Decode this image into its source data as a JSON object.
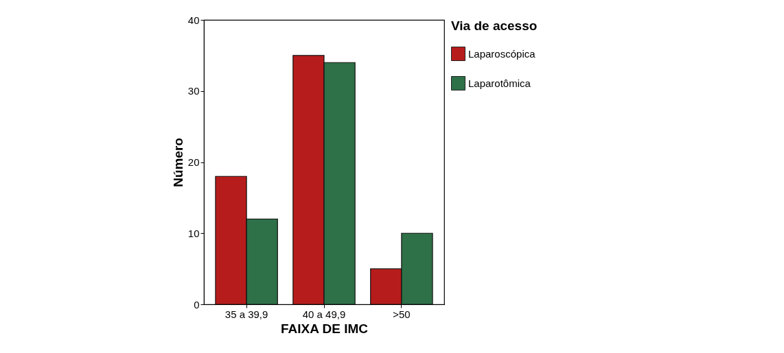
{
  "chart_data": {
    "type": "bar",
    "xlabel": "FAIXA DE IMC",
    "ylabel": "Número",
    "legend_title": "Via de acesso",
    "categories": [
      "35 a 39,9",
      "40 a 49,9",
      ">50"
    ],
    "series": [
      {
        "name": "Laparoscópica",
        "color": "#b71c1c",
        "values": [
          18,
          35,
          5
        ]
      },
      {
        "name": "Laparotômica",
        "color": "#2e7048",
        "values": [
          12,
          34,
          10
        ]
      }
    ],
    "ylim": [
      0,
      40
    ],
    "yticks": [
      0,
      10,
      20,
      30,
      40
    ],
    "grid": false,
    "legend": "right"
  }
}
